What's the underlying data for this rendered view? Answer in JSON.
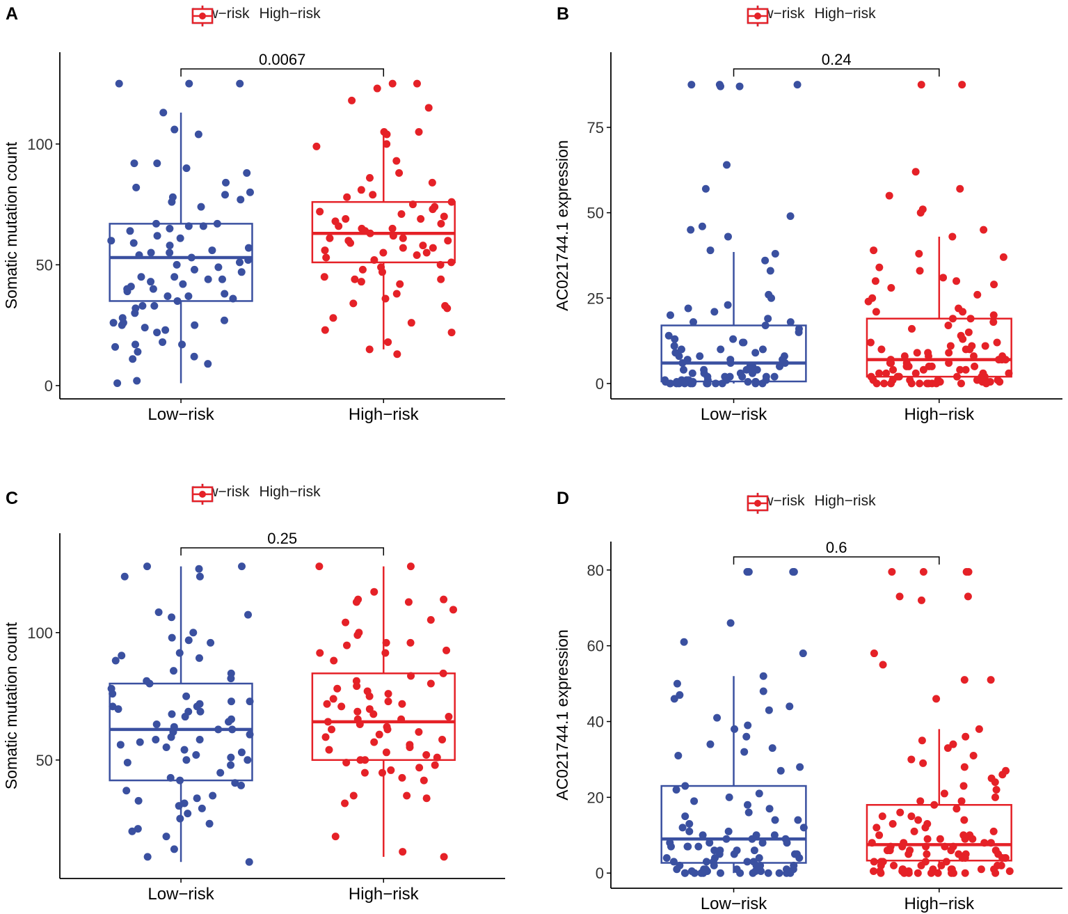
{
  "colors": {
    "low": "#3A50A0",
    "high": "#E52127",
    "axis": "#000000"
  },
  "legend": {
    "low_label": "Low−risk",
    "high_label": "High−risk"
  },
  "chart_data": [
    {
      "panel": "A",
      "type": "box+jitter",
      "ylabel": "Somatic mutation count",
      "categories": [
        "Low−risk",
        "High−risk"
      ],
      "yticks": [
        0,
        50,
        100
      ],
      "ylim": [
        -5.5,
        138
      ],
      "pvalue": "0.0067",
      "boxes": [
        {
          "q1": 35,
          "median": 53,
          "q3": 67,
          "whisker_low": 1,
          "whisker_high": 113
        },
        {
          "q1": 51,
          "median": 63,
          "q3": 76,
          "whisker_low": 15,
          "whisker_high": 105
        }
      ],
      "points": [
        [
          125,
          125,
          125,
          113,
          106,
          104,
          92,
          92,
          90,
          88,
          84,
          82,
          80,
          79,
          78,
          77,
          76,
          74,
          67,
          67,
          66,
          66,
          65,
          64,
          62,
          61,
          60,
          59,
          58,
          57,
          56,
          55,
          55,
          54,
          53,
          52,
          51,
          50,
          49,
          48,
          47,
          45,
          45,
          44,
          44,
          43,
          42,
          41,
          40,
          40,
          39,
          38,
          37,
          37,
          36,
          35,
          33,
          33,
          32,
          30,
          28,
          27,
          26,
          26,
          25,
          25,
          24,
          23,
          22,
          18,
          17,
          17,
          16,
          14,
          12,
          11,
          9,
          2,
          1
        ],
        [
          125,
          125,
          123,
          118,
          115,
          105,
          105,
          104,
          100,
          99,
          93,
          88,
          86,
          84,
          81,
          79,
          78,
          76,
          75,
          74,
          73,
          72,
          71,
          70,
          69,
          69,
          68,
          67,
          66,
          65,
          65,
          64,
          63,
          62,
          61,
          61,
          60,
          60,
          59,
          58,
          57,
          57,
          56,
          55,
          55,
          54,
          53,
          52,
          51,
          50,
          49,
          48,
          47,
          45,
          44,
          44,
          43,
          42,
          38,
          36,
          34,
          33,
          32,
          28,
          26,
          23,
          22,
          18,
          15,
          13
        ]
      ]
    },
    {
      "panel": "B",
      "type": "box+jitter",
      "ylabel": "AC021744.1 expression",
      "categories": [
        "Low−risk",
        "High−risk"
      ],
      "yticks": [
        0,
        25,
        50,
        75
      ],
      "ylim": [
        -4.5,
        97
      ],
      "pvalue": "0.24",
      "boxes": [
        {
          "q1": 0.6,
          "median": 6,
          "q3": 17,
          "whisker_low": 0,
          "whisker_high": 38.5
        },
        {
          "q1": 2,
          "median": 7,
          "q3": 19,
          "whisker_low": 0,
          "whisker_high": 43
        }
      ],
      "points": [
        [
          87.5,
          87.5,
          87.5,
          87,
          87,
          64,
          57,
          49,
          46,
          45,
          43,
          39,
          38,
          36,
          33,
          26,
          25,
          23,
          22,
          21,
          20,
          19,
          18,
          18,
          17,
          16,
          15,
          14,
          13,
          13,
          12,
          12,
          11,
          10,
          10,
          10,
          9,
          9,
          8,
          8,
          8,
          7,
          7,
          7,
          6,
          6,
          6,
          5,
          5,
          5,
          4,
          4,
          4,
          4,
          3,
          3,
          3,
          3,
          2,
          2,
          2,
          2,
          2,
          2,
          1,
          1,
          1,
          1,
          1,
          1,
          1,
          0.5,
          0.5,
          0.5,
          0.5,
          0.5,
          0.5,
          0,
          0,
          0,
          0,
          0,
          0,
          0,
          0,
          0,
          0,
          0,
          0,
          0
        ],
        [
          87.5,
          87.5,
          62,
          57,
          55,
          51,
          50,
          45,
          43,
          39,
          38,
          37,
          34,
          33,
          31,
          30,
          30,
          29,
          28,
          26,
          25,
          24,
          22,
          21,
          21,
          20,
          19,
          19,
          18,
          17,
          16,
          15,
          14,
          13,
          12,
          12,
          11,
          11,
          11,
          10,
          10,
          10,
          9,
          9,
          9,
          8,
          8,
          8,
          8,
          7,
          7,
          7,
          7,
          6,
          6,
          6,
          6,
          5,
          5,
          5,
          5,
          5,
          4,
          4,
          4,
          4,
          3,
          3,
          3,
          3,
          3,
          2,
          2,
          2,
          2,
          2,
          2,
          1,
          1,
          1,
          1,
          1,
          1,
          1,
          0.5,
          0.5,
          0.5,
          0.5,
          0.5,
          0,
          0,
          0,
          0,
          0,
          0,
          0,
          0,
          0,
          0,
          0
        ]
      ]
    },
    {
      "panel": "C",
      "type": "box+jitter",
      "ylabel": "Somatic mutation count",
      "categories": [
        "Low−risk",
        "High−risk"
      ],
      "yticks": [
        50,
        100
      ],
      "ylim": [
        3.5,
        139
      ],
      "pvalue": "0.25",
      "boxes": [
        {
          "q1": 42,
          "median": 62,
          "q3": 80,
          "whisker_low": 10,
          "whisker_high": 126
        },
        {
          "q1": 50,
          "median": 65,
          "q3": 84,
          "whisker_low": 12,
          "whisker_high": 126
        }
      ],
      "points": [
        [
          126,
          126,
          125,
          122,
          122,
          108,
          107,
          106,
          100,
          98,
          97,
          96,
          92,
          91,
          90,
          89,
          85,
          84,
          82,
          81,
          80,
          78,
          76,
          75,
          73,
          73,
          72,
          71,
          71,
          70,
          69,
          69,
          68,
          67,
          66,
          65,
          64,
          63,
          62,
          62,
          61,
          60,
          59,
          58,
          58,
          57,
          56,
          55,
          54,
          53,
          52,
          51,
          50,
          50,
          49,
          48,
          45,
          43,
          42,
          41,
          40,
          38,
          36,
          35,
          34,
          33,
          32,
          31,
          29,
          27,
          25,
          23,
          22,
          20,
          15,
          12,
          10
        ],
        [
          126,
          126,
          116,
          113,
          113,
          112,
          112,
          109,
          105,
          104,
          100,
          99,
          96,
          96,
          95,
          93,
          92,
          92,
          89,
          84,
          83,
          81,
          80,
          79,
          78,
          77,
          76,
          75,
          74,
          73,
          72,
          72,
          71,
          70,
          69,
          68,
          67,
          66,
          66,
          65,
          64,
          63,
          62,
          62,
          61,
          60,
          59,
          58,
          57,
          56,
          55,
          54,
          53,
          52,
          51,
          50,
          50,
          49,
          48,
          47,
          46,
          45,
          45,
          43,
          42,
          36,
          36,
          35,
          33,
          20,
          14,
          12
        ]
      ]
    },
    {
      "panel": "D",
      "type": "box+jitter",
      "ylabel": "AC021744.1 expression",
      "categories": [
        "Low−risk",
        "High−risk"
      ],
      "yticks": [
        0,
        20,
        40,
        60,
        80
      ],
      "ylim": [
        -4,
        87.5
      ],
      "pvalue": "0.6",
      "boxes": [
        {
          "q1": 2.7,
          "median": 9,
          "q3": 23,
          "whisker_low": 0,
          "whisker_high": 52
        },
        {
          "q1": 3.3,
          "median": 7.5,
          "q3": 18,
          "whisker_low": 0,
          "whisker_high": 38
        }
      ],
      "points": [
        [
          79.5,
          79.5,
          79.5,
          79.5,
          66,
          61,
          58,
          52,
          50,
          48,
          47,
          46,
          44,
          43,
          41,
          39,
          38,
          36,
          34,
          33,
          32,
          31,
          28,
          27,
          23,
          22,
          21,
          20,
          19,
          18,
          17,
          16,
          15,
          14,
          14,
          13,
          12,
          12,
          11,
          11,
          10,
          10,
          10,
          9,
          9,
          9,
          8,
          8,
          8,
          8,
          7,
          7,
          7,
          7,
          6,
          6,
          6,
          6,
          5,
          5,
          5,
          5,
          4,
          4,
          4,
          4,
          3,
          3,
          3,
          3,
          3,
          2,
          2,
          2,
          2,
          2,
          1,
          1,
          1,
          1,
          1,
          1,
          0.5,
          0.5,
          0.5,
          0.5,
          0,
          0,
          0,
          0,
          0,
          0,
          0,
          0,
          0,
          0,
          0,
          0
        ],
        [
          79.5,
          79.5,
          79.5,
          79.5,
          73,
          73,
          72,
          58,
          55,
          51,
          51,
          46,
          38,
          36,
          35,
          34,
          33,
          31,
          30,
          29,
          28,
          27,
          26,
          25,
          24,
          23,
          22,
          21,
          20,
          19,
          19,
          18,
          17,
          16,
          15,
          15,
          14,
          14,
          13,
          13,
          12,
          12,
          11,
          11,
          10,
          10,
          10,
          9,
          9,
          9,
          9,
          8,
          8,
          8,
          8,
          7,
          7,
          7,
          7,
          7,
          6,
          6,
          6,
          6,
          6,
          5,
          5,
          5,
          5,
          5,
          4,
          4,
          4,
          4,
          4,
          3,
          3,
          3,
          3,
          3,
          2,
          2,
          2,
          2,
          2,
          2,
          1,
          1,
          1,
          1,
          1,
          1,
          1,
          0.5,
          0.5,
          0.5,
          0.5,
          0.5,
          0,
          0,
          0,
          0,
          0,
          0,
          0,
          0,
          0,
          0
        ]
      ]
    }
  ]
}
